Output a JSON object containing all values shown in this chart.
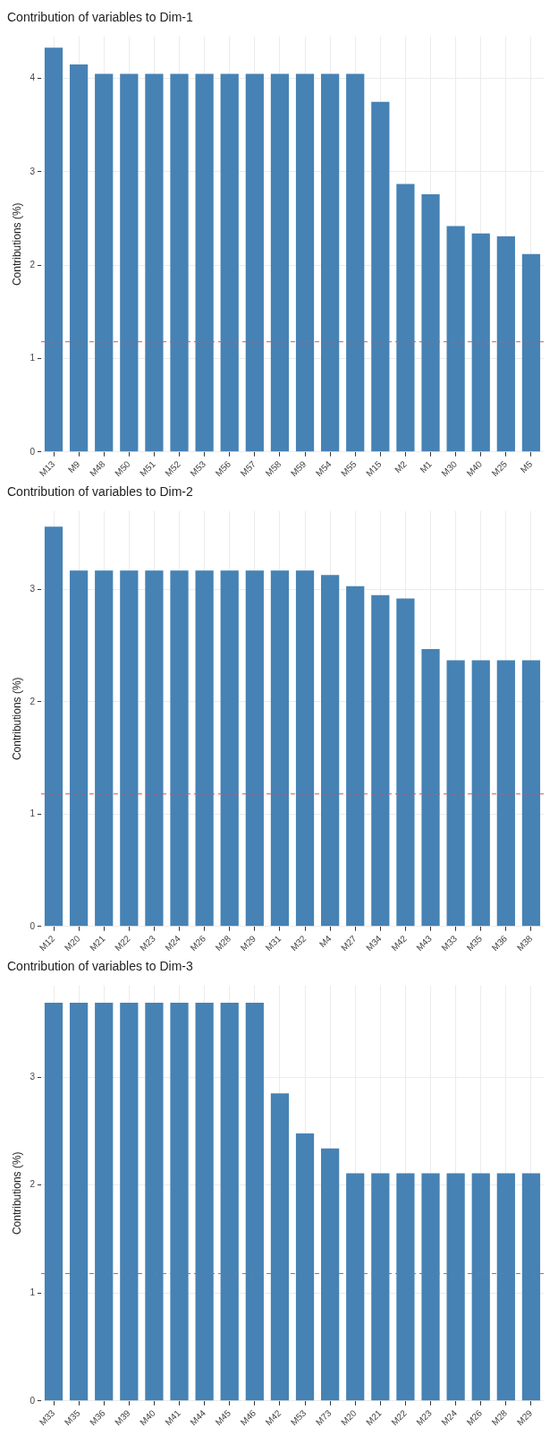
{
  "chart_data": [
    {
      "type": "bar",
      "title": "Contribution of variables to Dim-1",
      "ylabel": "Contributions (%)",
      "color": "#4682b4",
      "grid": true,
      "categories": [
        "M13",
        "M9",
        "M48",
        "M50",
        "M51",
        "M52",
        "M53",
        "M56",
        "M57",
        "M58",
        "M59",
        "M54",
        "M55",
        "M15",
        "M2",
        "M1",
        "M30",
        "M40",
        "M25",
        "M5"
      ],
      "values": [
        4.33,
        4.15,
        4.05,
        4.05,
        4.05,
        4.05,
        4.05,
        4.05,
        4.05,
        4.05,
        4.05,
        4.05,
        4.05,
        3.75,
        2.87,
        2.76,
        2.42,
        2.34,
        2.31,
        2.12
      ],
      "ylim": [
        0,
        4.45
      ],
      "yticks": [
        0,
        1,
        2,
        3,
        4
      ],
      "ref_lines": [
        {
          "axis": "y",
          "value": 1.18,
          "color": "#e05050",
          "line_style": "dashed"
        }
      ]
    },
    {
      "type": "bar",
      "title": "Contribution of variables to Dim-2",
      "ylabel": "Contributions (%)",
      "color": "#4682b4",
      "grid": true,
      "categories": [
        "M12",
        "M20",
        "M21",
        "M22",
        "M23",
        "M24",
        "M26",
        "M28",
        "M29",
        "M31",
        "M32",
        "M4",
        "M27",
        "M34",
        "M42",
        "M43",
        "M33",
        "M35",
        "M36",
        "M38"
      ],
      "values": [
        3.56,
        3.17,
        3.17,
        3.17,
        3.17,
        3.17,
        3.17,
        3.17,
        3.17,
        3.17,
        3.17,
        3.13,
        3.03,
        2.95,
        2.92,
        2.47,
        2.37,
        2.37,
        2.37,
        2.37
      ],
      "ylim": [
        0,
        3.7
      ],
      "yticks": [
        0,
        1,
        2,
        3
      ],
      "ref_lines": [
        {
          "axis": "y",
          "value": 1.18,
          "color": "#e05050",
          "line_style": "dashed"
        }
      ]
    },
    {
      "type": "bar",
      "title": "Contribution of variables to Dim-3",
      "ylabel": "Contributions (%)",
      "color": "#4682b4",
      "grid": true,
      "categories": [
        "M33",
        "M35",
        "M36",
        "M39",
        "M40",
        "M41",
        "M44",
        "M45",
        "M46",
        "M42",
        "M53",
        "M73",
        "M20",
        "M21",
        "M22",
        "M23",
        "M24",
        "M26",
        "M28",
        "M29"
      ],
      "values": [
        3.69,
        3.69,
        3.69,
        3.69,
        3.69,
        3.69,
        3.69,
        3.69,
        3.69,
        2.85,
        2.48,
        2.34,
        2.11,
        2.11,
        2.11,
        2.11,
        2.11,
        2.11,
        2.11,
        2.11
      ],
      "ylim": [
        0,
        3.85
      ],
      "yticks": [
        0,
        1,
        2,
        3
      ],
      "ref_lines": [
        {
          "axis": "y",
          "value": 1.18,
          "color": "#e05050",
          "line_style": "dashed"
        }
      ]
    }
  ]
}
